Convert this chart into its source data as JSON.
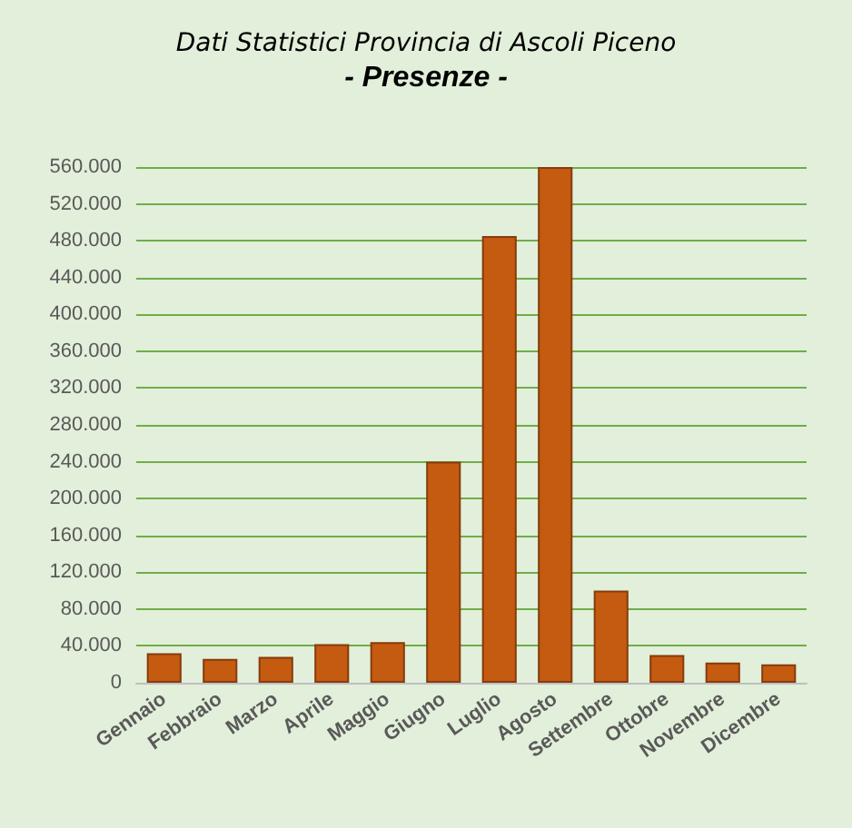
{
  "chart_data": {
    "type": "bar",
    "title": "Dati Statistici Provincia di Ascoli Piceno",
    "subtitle": "- Presenze -",
    "categories": [
      "Gennaio",
      "Febbraio",
      "Marzo",
      "Aprile",
      "Maggio",
      "Giugno",
      "Luglio",
      "Agosto",
      "Settembre",
      "Ottobre",
      "Novembre",
      "Dicembre"
    ],
    "values": [
      32000,
      26000,
      28000,
      42000,
      44000,
      240000,
      485000,
      560000,
      100000,
      30000,
      22000,
      20000
    ],
    "color": "#c55a11",
    "ylim": [
      0,
      560000
    ],
    "yticks": [
      {
        "value": 0,
        "label": "0"
      },
      {
        "value": 40000,
        "label": "40.000"
      },
      {
        "value": 80000,
        "label": "80.000"
      },
      {
        "value": 120000,
        "label": "120.000"
      },
      {
        "value": 160000,
        "label": "160.000"
      },
      {
        "value": 200000,
        "label": "200.000"
      },
      {
        "value": 240000,
        "label": "240.000"
      },
      {
        "value": 280000,
        "label": "280.000"
      },
      {
        "value": 320000,
        "label": "320.000"
      },
      {
        "value": 360000,
        "label": "360.000"
      },
      {
        "value": 400000,
        "label": "400.000"
      },
      {
        "value": 440000,
        "label": "440.000"
      },
      {
        "value": 480000,
        "label": "480.000"
      },
      {
        "value": 520000,
        "label": "520.000"
      },
      {
        "value": 560000,
        "label": "560.000"
      }
    ],
    "grid": "y"
  }
}
